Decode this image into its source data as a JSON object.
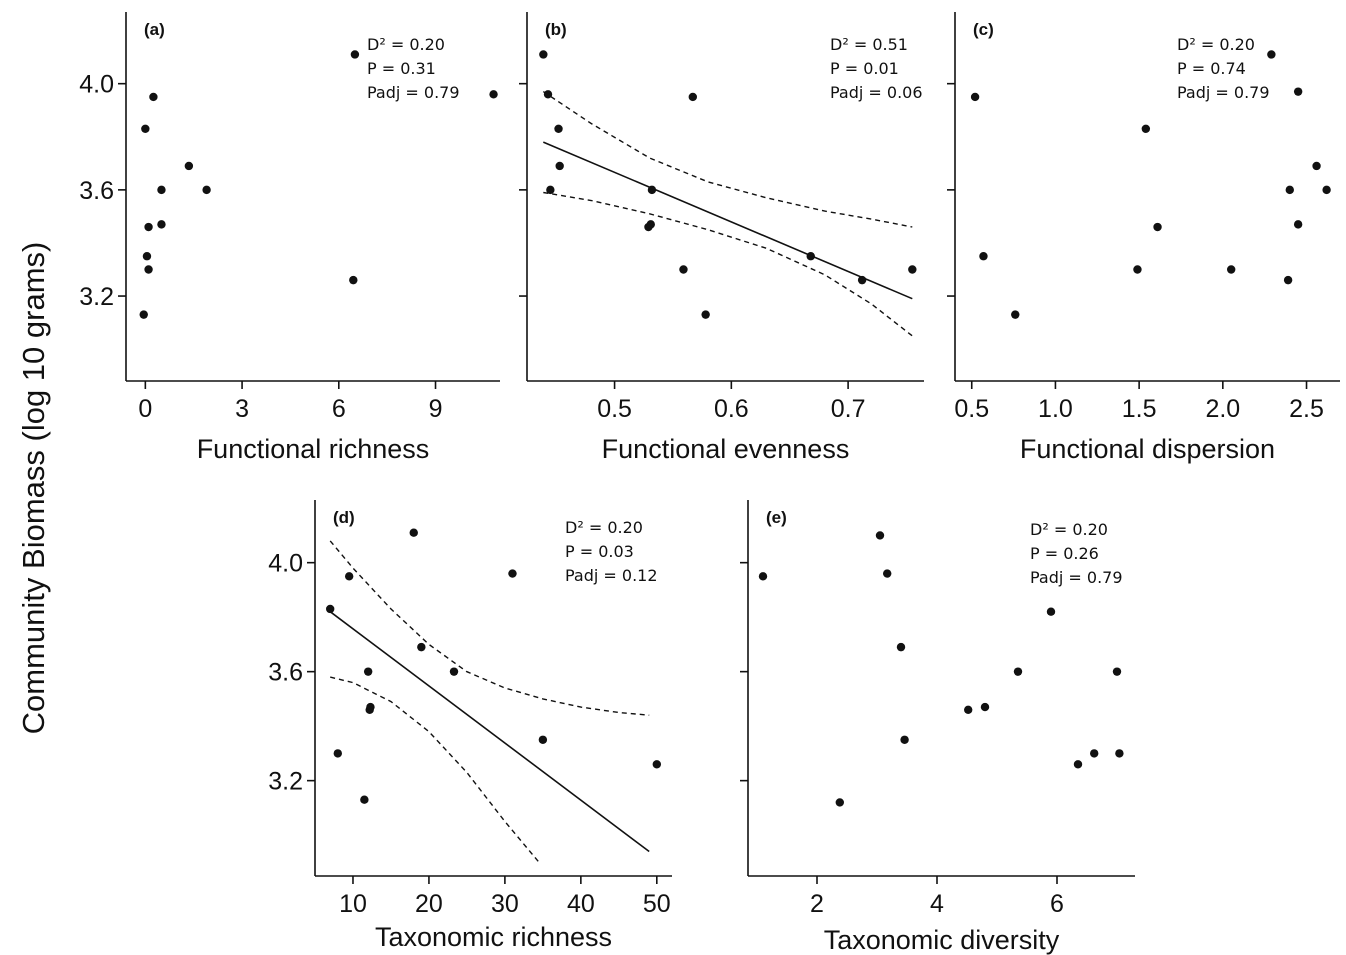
{
  "ylabel_shared": "Community Biomass (log 10 grams)",
  "chart_data": [
    {
      "id": "a",
      "type": "scatter",
      "panel_label": "(a)",
      "xlabel": "Functional richness",
      "xlim": [
        -0.6,
        11
      ],
      "ylim": [
        2.88,
        4.27
      ],
      "xticks": [
        0,
        3,
        6,
        9
      ],
      "xtick_labels": [
        "0",
        "3",
        "6",
        "9"
      ],
      "yticks": [
        3.2,
        3.6,
        4.0
      ],
      "ytick_labels": [
        "3.2",
        "3.6",
        "4.0"
      ],
      "stats": [
        "D² = 0.20",
        "P = 0.31",
        "Padj = 0.79"
      ],
      "points": [
        {
          "x": 6.5,
          "y": 4.11
        },
        {
          "x": 10.8,
          "y": 3.96
        },
        {
          "x": 0.25,
          "y": 3.95
        },
        {
          "x": 0.0,
          "y": 3.83
        },
        {
          "x": 1.35,
          "y": 3.69
        },
        {
          "x": 0.5,
          "y": 3.6
        },
        {
          "x": 1.9,
          "y": 3.6
        },
        {
          "x": 0.1,
          "y": 3.46
        },
        {
          "x": 0.5,
          "y": 3.47
        },
        {
          "x": 0.05,
          "y": 3.35
        },
        {
          "x": 0.1,
          "y": 3.3
        },
        {
          "x": 6.45,
          "y": 3.26
        },
        {
          "x": -0.05,
          "y": 3.13
        }
      ]
    },
    {
      "id": "b",
      "type": "scatter",
      "panel_label": "(b)",
      "xlabel": "Functional evenness",
      "xlim": [
        0.425,
        0.765
      ],
      "ylim": [
        2.88,
        4.27
      ],
      "xticks": [
        0.5,
        0.6,
        0.7
      ],
      "xtick_labels": [
        "0.5",
        "0.6",
        "0.7"
      ],
      "yticks": [
        3.2,
        3.6,
        4.0
      ],
      "ytick_labels": [
        "",
        "",
        ""
      ],
      "stats": [
        "D² = 0.51",
        "P = 0.01",
        "Padj = 0.06"
      ],
      "points": [
        {
          "x": 0.439,
          "y": 4.11
        },
        {
          "x": 0.443,
          "y": 3.96
        },
        {
          "x": 0.567,
          "y": 3.95
        },
        {
          "x": 0.452,
          "y": 3.83
        },
        {
          "x": 0.453,
          "y": 3.69
        },
        {
          "x": 0.445,
          "y": 3.6
        },
        {
          "x": 0.532,
          "y": 3.6
        },
        {
          "x": 0.529,
          "y": 3.46
        },
        {
          "x": 0.531,
          "y": 3.47
        },
        {
          "x": 0.668,
          "y": 3.35
        },
        {
          "x": 0.559,
          "y": 3.3
        },
        {
          "x": 0.755,
          "y": 3.3
        },
        {
          "x": 0.712,
          "y": 3.26
        },
        {
          "x": 0.578,
          "y": 3.13
        }
      ],
      "fit_line": [
        {
          "x": 0.439,
          "y": 3.78
        },
        {
          "x": 0.755,
          "y": 3.19
        }
      ],
      "ci_upper": [
        {
          "x": 0.439,
          "y": 3.97
        },
        {
          "x": 0.48,
          "y": 3.85
        },
        {
          "x": 0.53,
          "y": 3.72
        },
        {
          "x": 0.58,
          "y": 3.63
        },
        {
          "x": 0.63,
          "y": 3.57
        },
        {
          "x": 0.68,
          "y": 3.52
        },
        {
          "x": 0.72,
          "y": 3.49
        },
        {
          "x": 0.755,
          "y": 3.46
        }
      ],
      "ci_lower": [
        {
          "x": 0.439,
          "y": 3.59
        },
        {
          "x": 0.48,
          "y": 3.56
        },
        {
          "x": 0.53,
          "y": 3.51
        },
        {
          "x": 0.58,
          "y": 3.45
        },
        {
          "x": 0.63,
          "y": 3.38
        },
        {
          "x": 0.68,
          "y": 3.28
        },
        {
          "x": 0.72,
          "y": 3.17
        },
        {
          "x": 0.755,
          "y": 3.05
        }
      ]
    },
    {
      "id": "c",
      "type": "scatter",
      "panel_label": "(c)",
      "xlabel": "Functional dispersion",
      "xlim": [
        0.4,
        2.7
      ],
      "ylim": [
        2.88,
        4.27
      ],
      "xticks": [
        0.5,
        1.0,
        1.5,
        2.0,
        2.5
      ],
      "xtick_labels": [
        "0.5",
        "1.0",
        "1.5",
        "2.0",
        "2.5"
      ],
      "yticks": [
        3.2,
        3.6,
        4.0
      ],
      "ytick_labels": [
        "",
        "",
        ""
      ],
      "stats": [
        "D² = 0.20",
        "P = 0.74",
        "Padj = 0.79"
      ],
      "points": [
        {
          "x": 2.29,
          "y": 4.11
        },
        {
          "x": 2.45,
          "y": 3.97
        },
        {
          "x": 0.52,
          "y": 3.95
        },
        {
          "x": 1.54,
          "y": 3.83
        },
        {
          "x": 2.56,
          "y": 3.69
        },
        {
          "x": 2.4,
          "y": 3.6
        },
        {
          "x": 2.62,
          "y": 3.6
        },
        {
          "x": 1.61,
          "y": 3.46
        },
        {
          "x": 2.45,
          "y": 3.47
        },
        {
          "x": 0.57,
          "y": 3.35
        },
        {
          "x": 1.49,
          "y": 3.3
        },
        {
          "x": 2.05,
          "y": 3.3
        },
        {
          "x": 2.39,
          "y": 3.26
        },
        {
          "x": 0.76,
          "y": 3.13
        }
      ]
    },
    {
      "id": "d",
      "type": "scatter",
      "panel_label": "(d)",
      "xlabel": "Taxonomic richness",
      "xlim": [
        5,
        52
      ],
      "ylim": [
        2.85,
        4.23
      ],
      "xticks": [
        10,
        20,
        30,
        40,
        50
      ],
      "xtick_labels": [
        "10",
        "20",
        "30",
        "40",
        "50"
      ],
      "yticks": [
        3.2,
        3.6,
        4.0
      ],
      "ytick_labels": [
        "3.2",
        "3.6",
        "4.0"
      ],
      "stats": [
        "D² = 0.20",
        "P = 0.03",
        "Padj = 0.12"
      ],
      "points": [
        {
          "x": 18,
          "y": 4.11
        },
        {
          "x": 9.5,
          "y": 3.95
        },
        {
          "x": 31,
          "y": 3.96
        },
        {
          "x": 7,
          "y": 3.83
        },
        {
          "x": 19,
          "y": 3.69
        },
        {
          "x": 12,
          "y": 3.6
        },
        {
          "x": 23.3,
          "y": 3.6
        },
        {
          "x": 12.2,
          "y": 3.46
        },
        {
          "x": 12.3,
          "y": 3.47
        },
        {
          "x": 35,
          "y": 3.35
        },
        {
          "x": 8,
          "y": 3.3
        },
        {
          "x": 50,
          "y": 3.26
        },
        {
          "x": 11.5,
          "y": 3.13
        }
      ],
      "fit_line": [
        {
          "x": 7,
          "y": 3.82
        },
        {
          "x": 49,
          "y": 2.94
        }
      ],
      "ci_upper": [
        {
          "x": 7,
          "y": 4.08
        },
        {
          "x": 10,
          "y": 3.98
        },
        {
          "x": 15,
          "y": 3.83
        },
        {
          "x": 20,
          "y": 3.7
        },
        {
          "x": 25,
          "y": 3.6
        },
        {
          "x": 30,
          "y": 3.54
        },
        {
          "x": 35,
          "y": 3.5
        },
        {
          "x": 40,
          "y": 3.47
        },
        {
          "x": 45,
          "y": 3.45
        },
        {
          "x": 49,
          "y": 3.44
        }
      ],
      "ci_lower": [
        {
          "x": 7,
          "y": 3.58
        },
        {
          "x": 10,
          "y": 3.56
        },
        {
          "x": 15,
          "y": 3.49
        },
        {
          "x": 20,
          "y": 3.38
        },
        {
          "x": 25,
          "y": 3.23
        },
        {
          "x": 30,
          "y": 3.05
        },
        {
          "x": 34.5,
          "y": 2.9
        }
      ]
    },
    {
      "id": "e",
      "type": "scatter",
      "panel_label": "(e)",
      "xlabel": "Taxonomic diversity",
      "xlim": [
        0.85,
        7.3
      ],
      "ylim": [
        2.85,
        4.23
      ],
      "xticks": [
        2,
        4,
        6
      ],
      "xtick_labels": [
        "2",
        "4",
        "6"
      ],
      "yticks": [
        3.2,
        3.6,
        4.0
      ],
      "ytick_labels": [
        "",
        "",
        ""
      ],
      "stats": [
        "D² = 0.20",
        "P = 0.26",
        "Padj = 0.79"
      ],
      "points": [
        {
          "x": 3.05,
          "y": 4.1
        },
        {
          "x": 1.1,
          "y": 3.95
        },
        {
          "x": 3.17,
          "y": 3.96
        },
        {
          "x": 5.9,
          "y": 3.82
        },
        {
          "x": 3.4,
          "y": 3.69
        },
        {
          "x": 5.35,
          "y": 3.6
        },
        {
          "x": 7.0,
          "y": 3.6
        },
        {
          "x": 4.52,
          "y": 3.46
        },
        {
          "x": 4.8,
          "y": 3.47
        },
        {
          "x": 3.46,
          "y": 3.35
        },
        {
          "x": 6.62,
          "y": 3.3
        },
        {
          "x": 7.04,
          "y": 3.3
        },
        {
          "x": 6.35,
          "y": 3.26
        },
        {
          "x": 2.38,
          "y": 3.12
        }
      ]
    }
  ]
}
